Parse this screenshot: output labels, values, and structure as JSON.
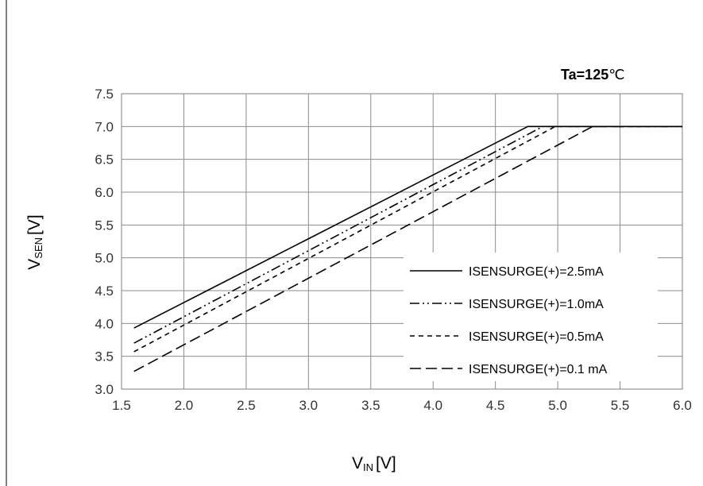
{
  "chart_data": {
    "type": "line",
    "annotation": {
      "main": "Ta=125",
      "unit": "℃"
    },
    "xlabel": {
      "main": "V",
      "sub": "IN",
      "unit": "[V]"
    },
    "ylabel": {
      "main": "V",
      "sub": "SEN",
      "unit": "[V]"
    },
    "xlim": [
      1.5,
      6.0
    ],
    "ylim": [
      3.0,
      7.5
    ],
    "xticks": [
      "1.5",
      "2.0",
      "2.5",
      "3.0",
      "3.5",
      "4.0",
      "4.5",
      "5.0",
      "5.5",
      "6.0"
    ],
    "yticks": [
      "3.0",
      "3.5",
      "4.0",
      "4.5",
      "5.0",
      "5.5",
      "6.0",
      "6.5",
      "7.0",
      "7.5"
    ],
    "grid": true,
    "legend_position": "bottom-right",
    "series": [
      {
        "name": "ISENSURGE(+)=2.5mA",
        "dash": "solid",
        "x": [
          1.6,
          4.76,
          6.0
        ],
        "y": [
          3.93,
          7.0,
          7.0
        ]
      },
      {
        "name": "ISENSURGE(+)=1.0mA",
        "dash": "dash-dot-dot",
        "x": [
          1.6,
          4.88,
          6.0
        ],
        "y": [
          3.7,
          7.0,
          7.0
        ]
      },
      {
        "name": "ISENSURGE(+)=0.5mA",
        "dash": "short-dash",
        "x": [
          1.6,
          4.98,
          6.0
        ],
        "y": [
          3.57,
          7.0,
          7.0
        ]
      },
      {
        "name": "ISENSURGE(+)=0.1 mA",
        "dash": "long-dash",
        "x": [
          1.6,
          5.28,
          6.0
        ],
        "y": [
          3.27,
          7.0,
          7.0
        ]
      }
    ]
  }
}
